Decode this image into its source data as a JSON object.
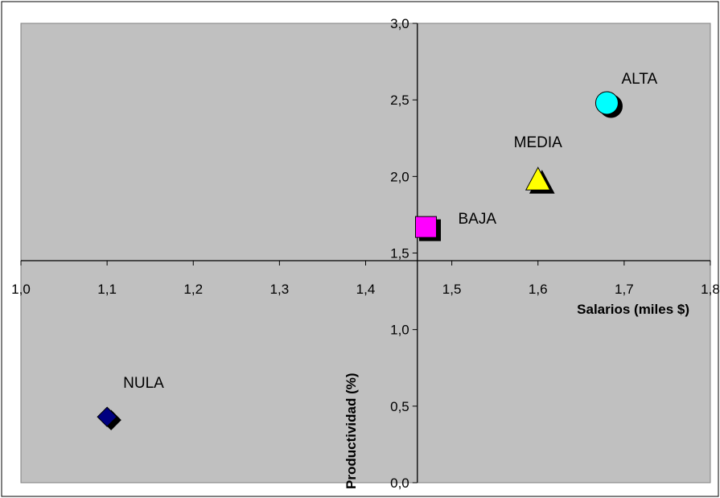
{
  "chart_data": {
    "type": "scatter",
    "title": "",
    "xlabel": "Salarios (miles $)",
    "ylabel": "Productividad (%)",
    "xlim": [
      1.0,
      1.8
    ],
    "ylim": [
      0.0,
      3.0
    ],
    "x_ticks": [
      "1,0",
      "1,1",
      "1,2",
      "1,3",
      "1,4",
      "1,5",
      "1,6",
      "1,7",
      "1,8"
    ],
    "y_ticks": [
      "0,0",
      "0,5",
      "1,0",
      "1,5",
      "2,0",
      "2,5",
      "3,0"
    ],
    "x_tick_values": [
      1.0,
      1.1,
      1.2,
      1.3,
      1.4,
      1.5,
      1.6,
      1.7,
      1.8
    ],
    "y_tick_values": [
      0.0,
      0.5,
      1.0,
      1.5,
      2.0,
      2.5,
      3.0
    ],
    "axes_crossing": {
      "x": 1.46,
      "y": 1.45
    },
    "grid": false,
    "plot_background": "#c0c0c0",
    "points": [
      {
        "label": "ALTA",
        "x": 1.68,
        "y": 2.48,
        "marker": "circle",
        "color": "#00ffff"
      },
      {
        "label": "MEDIA",
        "x": 1.6,
        "y": 1.98,
        "marker": "triangle",
        "color": "#ffff00"
      },
      {
        "label": "BAJA",
        "x": 1.47,
        "y": 1.67,
        "marker": "square",
        "color": "#ff00ff"
      },
      {
        "label": "NULA",
        "x": 1.1,
        "y": 0.43,
        "marker": "diamond",
        "color": "#000080"
      }
    ]
  }
}
